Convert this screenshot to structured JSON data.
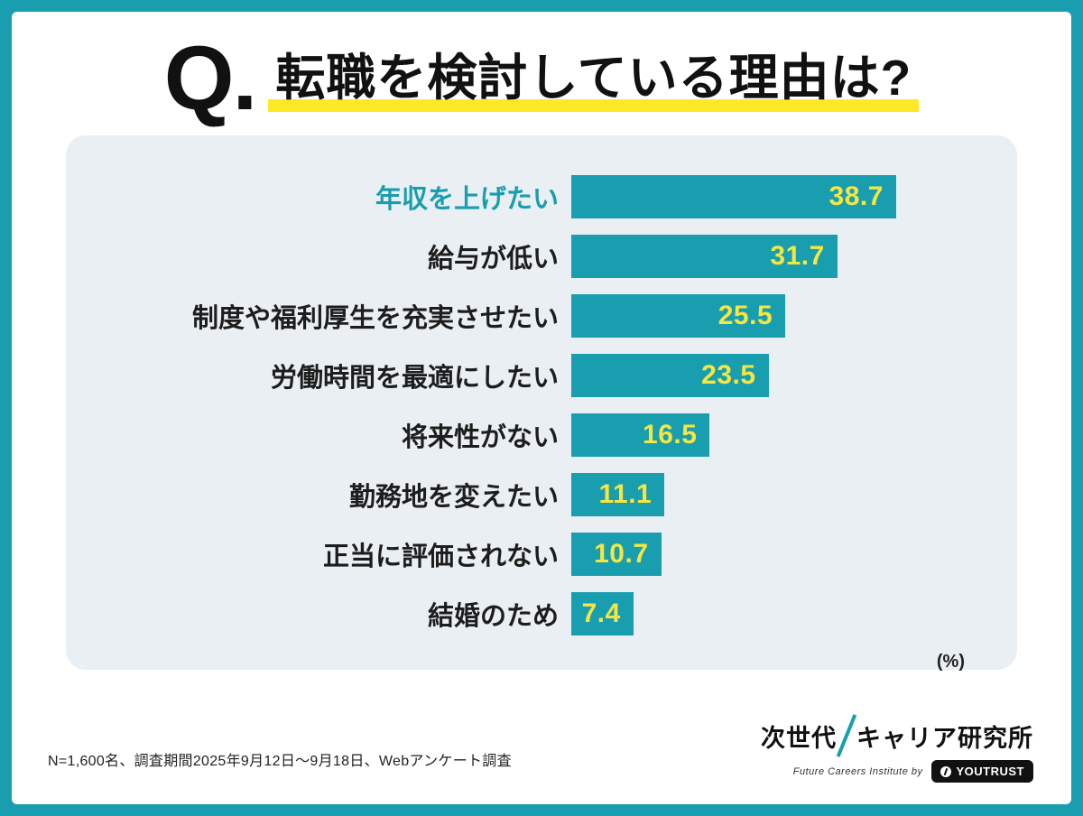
{
  "page": {
    "frame_color": "#189EAE",
    "panel_color": "#E9EFF3"
  },
  "header": {
    "q_label": "Q.",
    "title": "転職を検討している理由は?",
    "underline_color": "#FFE926"
  },
  "chart_data": {
    "type": "bar",
    "orientation": "horizontal",
    "title": "転職を検討している理由は?",
    "unit_label": "(%)",
    "categories": [
      "年収を上げたい",
      "給与が低い",
      "制度や福利厚生を充実させたい",
      "労働時間を最適にしたい",
      "将来性がない",
      "勤務地を変えたい",
      "正当に評価されない",
      "結婚のため"
    ],
    "values": [
      38.7,
      31.7,
      25.5,
      23.5,
      16.5,
      11.1,
      10.7,
      7.4
    ],
    "xlim": [
      0,
      40
    ],
    "bar_color": "#189EAE",
    "value_label_color": "#F5E642",
    "highlight_category_index": 0,
    "highlight_label_color": "#189EAE",
    "legend": "none",
    "grid": false
  },
  "footer": {
    "note": "N=1,600名、調査期間2025年9月12日〜9月18日、Webアンケート調査",
    "logo": {
      "title_part1": "次世代",
      "title_part2": "キャリア研究所",
      "subtitle": "Future Careers Institute by",
      "brand": "YOUTRUST"
    }
  }
}
